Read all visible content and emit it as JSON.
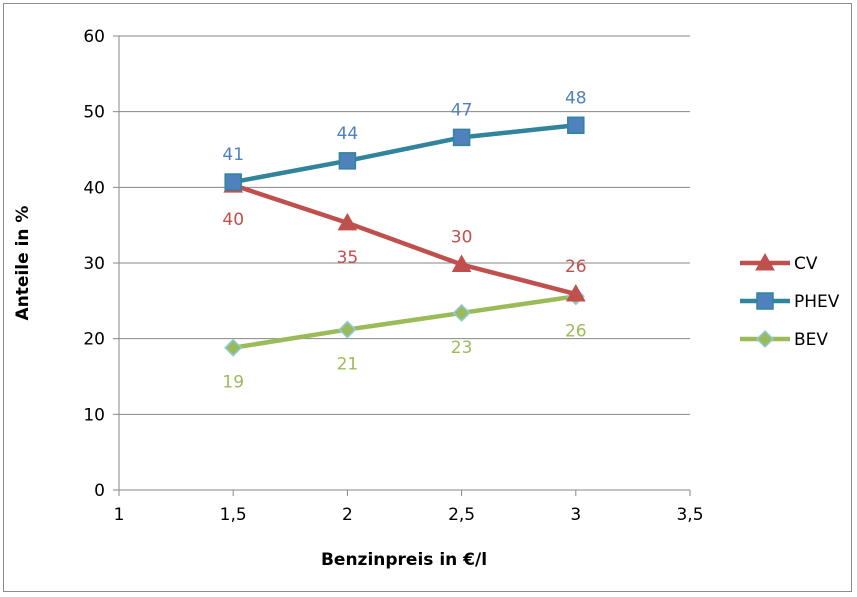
{
  "chart_data": {
    "type": "line",
    "xlabel": "Benzinpreis in €/l",
    "ylabel": "Anteile in %",
    "xlim": [
      1,
      3.5
    ],
    "ylim": [
      0,
      60
    ],
    "x_ticks": [
      "1",
      "1,5",
      "2",
      "2,5",
      "3",
      "3,5"
    ],
    "x_tick_values": [
      1,
      1.5,
      2,
      2.5,
      3,
      3.5
    ],
    "y_ticks": [
      "0",
      "10",
      "20",
      "30",
      "40",
      "50",
      "60"
    ],
    "y_tick_values": [
      0,
      10,
      20,
      30,
      40,
      50,
      60
    ],
    "grid": "horizontal",
    "legend_position": "right",
    "x": [
      1.5,
      2,
      2.5,
      3
    ],
    "series": [
      {
        "name": "CV",
        "color": "#c0504d",
        "marker": "triangle",
        "values": [
          40.3,
          35.3,
          29.8,
          25.9
        ],
        "labels": [
          "40",
          "35",
          "30",
          "26"
        ],
        "label_pos": [
          "below",
          "below",
          "above",
          "above"
        ]
      },
      {
        "name": "PHEV",
        "color": "#31849b",
        "marker_fill": "#4f81bd",
        "label_color": "#4f81bd",
        "marker": "square",
        "values": [
          40.7,
          43.5,
          46.6,
          48.2
        ],
        "labels": [
          "41",
          "44",
          "47",
          "48"
        ],
        "label_pos": [
          "above",
          "above",
          "above",
          "above"
        ]
      },
      {
        "name": "BEV",
        "color": "#9bbb59",
        "marker_fill": "#9bbb59",
        "marker_stroke": "#8ccbe0",
        "marker": "diamond",
        "values": [
          18.8,
          21.2,
          23.4,
          25.6
        ],
        "labels": [
          "19",
          "21",
          "23",
          "26"
        ],
        "label_pos": [
          "below",
          "below",
          "below",
          "below"
        ]
      }
    ]
  }
}
